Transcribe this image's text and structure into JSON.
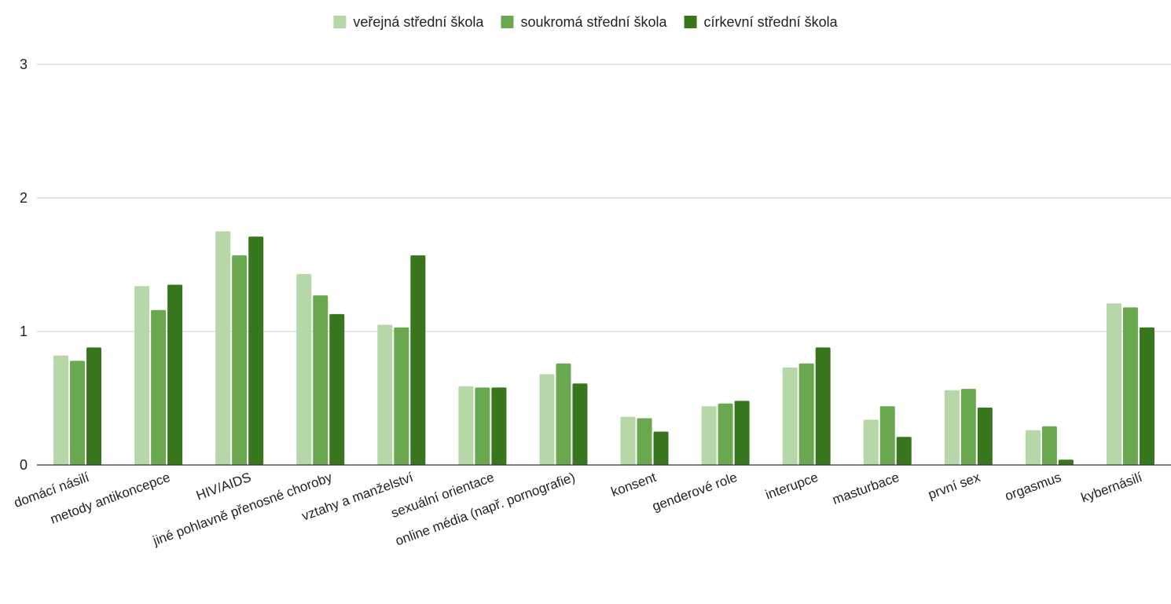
{
  "chart_data": {
    "type": "bar",
    "categories": [
      "domácí násilí",
      "metody antikoncepce",
      "HIV/AIDS",
      "jiné pohlavně přenosné choroby",
      "vztahy a manželství",
      "sexuální orientace",
      "online média (např. pornografie)",
      "konsent",
      "genderové role",
      "interupce",
      "masturbace",
      "první sex",
      "orgasmus",
      "kybernásilí"
    ],
    "series": [
      {
        "name": "veřejná střední škola",
        "color": "#b6d7a8",
        "values": [
          0.82,
          1.34,
          1.75,
          1.43,
          1.05,
          0.59,
          0.68,
          0.36,
          0.44,
          0.73,
          0.34,
          0.56,
          0.26,
          1.21
        ]
      },
      {
        "name": "soukromá střední škola",
        "color": "#6aa84f",
        "values": [
          0.78,
          1.16,
          1.57,
          1.27,
          1.03,
          0.58,
          0.76,
          0.35,
          0.46,
          0.76,
          0.44,
          0.57,
          0.29,
          1.18
        ]
      },
      {
        "name": "církevní střední škola",
        "color": "#38761d",
        "values": [
          0.88,
          1.35,
          1.71,
          1.13,
          1.57,
          0.58,
          0.61,
          0.25,
          0.48,
          0.88,
          0.21,
          0.43,
          0.04,
          1.03
        ]
      }
    ],
    "title": "",
    "xlabel": "",
    "ylabel": "",
    "ylim": [
      0,
      3
    ],
    "yticks": [
      0,
      1,
      2,
      3
    ],
    "grid": true,
    "legend": "top-center"
  }
}
